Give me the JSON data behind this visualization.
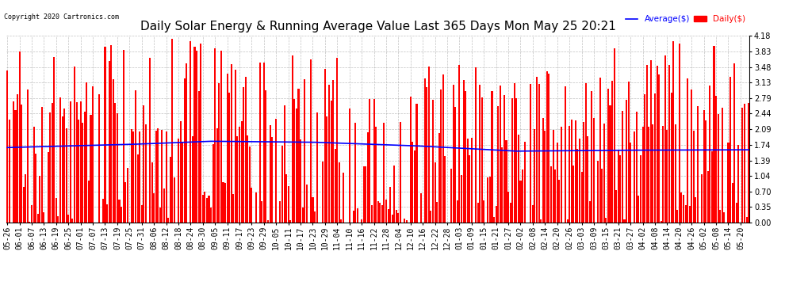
{
  "title": "Daily Solar Energy & Running Average Value Last 365 Days Mon May 25 20:21",
  "copyright": "Copyright 2020 Cartronics.com",
  "legend_avg": "Average($)",
  "legend_daily": "Daily($)",
  "bar_color": "#ff0000",
  "avg_line_color": "#0000ff",
  "background_color": "#ffffff",
  "plot_bg_color": "#ffffff",
  "grid_color": "#999999",
  "title_fontsize": 11,
  "tick_fontsize": 7,
  "ylim": [
    0.0,
    4.18
  ],
  "yticks": [
    0.0,
    0.35,
    0.7,
    1.04,
    1.39,
    1.74,
    2.09,
    2.44,
    2.79,
    3.13,
    3.48,
    3.83,
    4.18
  ],
  "n_bars": 365,
  "tick_step": 6
}
